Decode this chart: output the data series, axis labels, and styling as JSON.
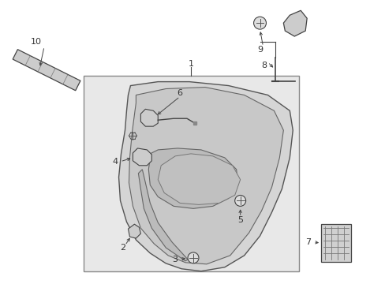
{
  "background_color": "#ffffff",
  "box_color": "#e8e8e8",
  "box_edge": "#888888",
  "line_color": "#444444",
  "part_color": "#333333",
  "label_fontsize": 8.0
}
